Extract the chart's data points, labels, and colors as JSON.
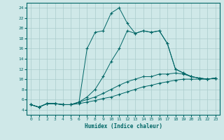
{
  "xlabel": "Humidex (Indice chaleur)",
  "background_color": "#cfe8e8",
  "grid_color": "#aacccc",
  "line_color": "#006666",
  "xlim": [
    -0.5,
    23.5
  ],
  "ylim": [
    3,
    25
  ],
  "xticks": [
    0,
    1,
    2,
    3,
    4,
    5,
    6,
    7,
    8,
    9,
    10,
    11,
    12,
    13,
    14,
    15,
    16,
    17,
    18,
    19,
    20,
    21,
    22,
    23
  ],
  "yticks": [
    4,
    6,
    8,
    10,
    12,
    14,
    16,
    18,
    20,
    22,
    24
  ],
  "series": [
    {
      "x": [
        0,
        1,
        2,
        3,
        4,
        5,
        6,
        7,
        8,
        9,
        10,
        11,
        12,
        13,
        14,
        15,
        16,
        17,
        18,
        19,
        20,
        21,
        22,
        23
      ],
      "y": [
        5,
        4.5,
        5.2,
        5.2,
        5.0,
        5.0,
        5.2,
        5.5,
        5.8,
        6.2,
        6.5,
        7.0,
        7.5,
        8.0,
        8.5,
        8.8,
        9.2,
        9.5,
        9.8,
        10.0,
        10.0,
        10.0,
        10.0,
        10.2
      ]
    },
    {
      "x": [
        0,
        1,
        2,
        3,
        4,
        5,
        6,
        7,
        8,
        9,
        10,
        11,
        12,
        13,
        14,
        15,
        16,
        17,
        18,
        19,
        20,
        21,
        22,
        23
      ],
      "y": [
        5,
        4.5,
        5.2,
        5.2,
        5.0,
        5.0,
        5.5,
        6.0,
        6.5,
        7.2,
        8.0,
        8.8,
        9.5,
        10.0,
        10.5,
        10.5,
        11.0,
        11.0,
        11.2,
        11.0,
        10.5,
        10.2,
        10.0,
        10.2
      ]
    },
    {
      "x": [
        0,
        1,
        2,
        3,
        4,
        5,
        6,
        7,
        8,
        9,
        10,
        11,
        12,
        13,
        14,
        15,
        16,
        17,
        18,
        19,
        20,
        21,
        22,
        23
      ],
      "y": [
        5,
        4.5,
        5.2,
        5.2,
        5.0,
        5.0,
        5.5,
        6.5,
        8.0,
        10.5,
        13.5,
        16.0,
        19.5,
        19.0,
        19.5,
        19.2,
        19.5,
        17.0,
        12.0,
        11.2,
        10.5,
        10.2,
        10.0,
        10.2
      ]
    },
    {
      "x": [
        0,
        1,
        2,
        3,
        4,
        5,
        6,
        7,
        8,
        9,
        10,
        11,
        12,
        13,
        14,
        15,
        16,
        17,
        18,
        19,
        20,
        21,
        22,
        23
      ],
      "y": [
        5,
        4.5,
        5.2,
        5.2,
        5.0,
        5.0,
        5.5,
        16.0,
        19.2,
        19.5,
        23.0,
        24.0,
        21.0,
        19.0,
        19.5,
        19.2,
        19.5,
        17.0,
        12.0,
        11.2,
        10.5,
        10.2,
        10.0,
        10.2
      ]
    }
  ]
}
